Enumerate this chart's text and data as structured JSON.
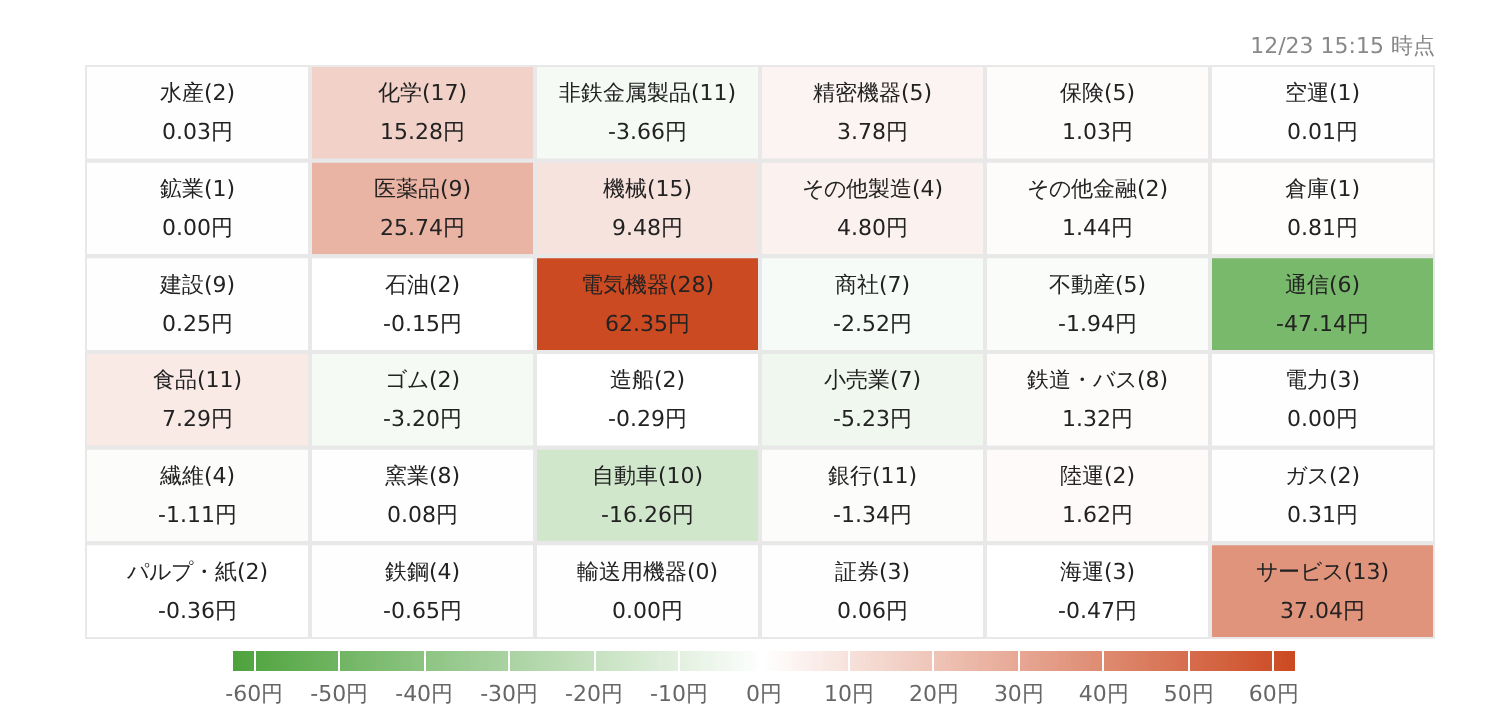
{
  "chart_data": {
    "type": "heatmap",
    "categories": [
      null,
      null,
      null,
      null,
      null,
      null
    ],
    "y_categories": [
      null,
      null,
      null,
      null,
      null,
      null
    ],
    "cells": [
      [
        0.03,
        15.28,
        -3.66,
        3.78,
        1.03,
        0.01
      ],
      [
        0.0,
        25.74,
        9.48,
        4.8,
        1.44,
        0.81
      ],
      [
        0.25,
        -0.15,
        62.35,
        -2.52,
        -1.94,
        -47.14
      ],
      [
        7.29,
        -3.2,
        -0.29,
        -5.23,
        1.32,
        0.0
      ],
      [
        -1.11,
        0.08,
        -16.26,
        -1.34,
        1.62,
        0.31
      ],
      [
        -0.36,
        -0.65,
        0.0,
        0.06,
        -0.47,
        37.04
      ]
    ],
    "cell_labels": [
      [
        "水産(2)\n0.03円",
        "化学(17)\n15.28円",
        "非鉄金属製品(11)\n-3.66円",
        "精密機器(5)\n3.78円",
        "保険(5)\n1.03円",
        "空運(1)\n0.01円"
      ],
      [
        "鉱業(1)\n0.00円",
        "医薬品(9)\n25.74円",
        "機械(15)\n9.48円",
        "その他製造(4)\n4.80円",
        "その他金融(2)\n1.44円",
        "倉庫(1)\n0.81円"
      ],
      [
        "建設(9)\n0.25円",
        "石油(2)\n-0.15円",
        "電気機器(28)\n62.35円",
        "商社(7)\n-2.52円",
        "不動産(5)\n-1.94円",
        "通信(6)\n-47.14円"
      ],
      [
        "食品(11)\n7.29円",
        "ゴム(2)\n-3.20円",
        "造船(2)\n-0.29円",
        "小売業(7)\n-5.23円",
        "鉄道・バス(8)\n1.32円",
        "電力(3)\n0.00円"
      ],
      [
        "繊維(4)\n-1.11円",
        "窯業(8)\n0.08円",
        "自動車(10)\n-16.26円",
        "銀行(11)\n-1.34円",
        "陸運(2)\n1.62円",
        "ガス(2)\n0.31円"
      ],
      [
        "パルプ・紙(2)\n-0.36円",
        "鉄鋼(4)\n-0.65円",
        "輸送用機器(0)\n0.00円",
        "証券(3)\n0.06円",
        "海運(3)\n-0.47円",
        "サービス(13)\n37.04円"
      ]
    ],
    "colors": [
      "#4ea33d",
      "#ffffff",
      "#cc4a22"
    ],
    "clim": [
      -62.5,
      62.5
    ],
    "cticks": [
      {
        "value": -60,
        "label": "-60円"
      },
      {
        "value": -50,
        "label": "-50円"
      },
      {
        "value": -40,
        "label": "-40円"
      },
      {
        "value": -30,
        "label": "-30円"
      },
      {
        "value": -20,
        "label": "-20円"
      },
      {
        "value": -10,
        "label": "-10円"
      },
      {
        "value": 0,
        "label": "0円"
      },
      {
        "value": 10,
        "label": "10円"
      },
      {
        "value": 20,
        "label": "20円"
      },
      {
        "value": 30,
        "label": "30円"
      },
      {
        "value": 40,
        "label": "40円"
      },
      {
        "value": 50,
        "label": "50円"
      },
      {
        "value": 60,
        "label": "60円"
      }
    ],
    "annotations": [
      "12/23 15:15 時点"
    ]
  }
}
